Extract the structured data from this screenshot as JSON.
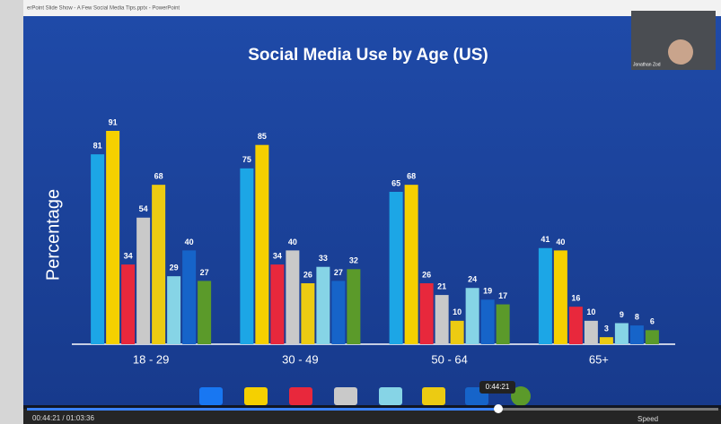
{
  "window_title": "erPoint Slide Show - A Few Social Media Tips.pptx - PowerPoint",
  "webcam_name": "Jonathan Zod",
  "player": {
    "time": "00:44:21 / 01:03:36",
    "tooltip": "0:44:21",
    "speed": "Speed"
  },
  "chart_data": {
    "type": "bar",
    "title": "Social Media Use by Age (US)",
    "y_label": "Percentage",
    "categories": [
      "18 - 29",
      "30 - 49",
      "50 - 64",
      "65+"
    ],
    "series": [
      {
        "color": "#1ca6e6",
        "values": [
          81,
          75,
          65,
          41
        ]
      },
      {
        "color": "#f5d000",
        "values": [
          91,
          85,
          68,
          40
        ]
      },
      {
        "color": "#e8283c",
        "values": [
          34,
          34,
          26,
          16
        ]
      },
      {
        "color": "#c9c9c9",
        "values": [
          54,
          40,
          21,
          10
        ]
      },
      {
        "color": "#eccb12",
        "values": [
          68,
          26,
          10,
          3
        ]
      },
      {
        "color": "#86d4e6",
        "values": [
          29,
          33,
          24,
          9
        ]
      },
      {
        "color": "#1664c9",
        "values": [
          40,
          27,
          19,
          8
        ]
      },
      {
        "color": "#5b9a2a",
        "values": [
          27,
          32,
          17,
          6
        ]
      }
    ]
  }
}
